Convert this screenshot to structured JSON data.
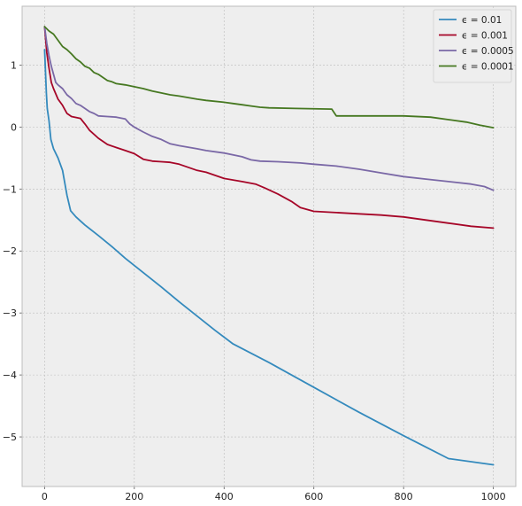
{
  "chart_data": {
    "type": "line",
    "title": "",
    "xlabel": "",
    "ylabel": "",
    "xlim": [
      -50,
      1050
    ],
    "ylim": [
      -5.8,
      1.95
    ],
    "grid": true,
    "legend_position": "top-right",
    "x_ticks": [
      0,
      200,
      400,
      600,
      800,
      1000
    ],
    "y_ticks": [
      -5,
      -4,
      -3,
      -2,
      -1,
      0,
      1
    ],
    "x_tick_labels": [
      "0",
      "200",
      "400",
      "600",
      "800",
      "1000"
    ],
    "y_tick_labels": [
      "−5",
      "−4",
      "−3",
      "−2",
      "−1",
      "0",
      "1"
    ],
    "colors": {
      "plot_background": "#eeeeee",
      "grid": "#bcbcbc",
      "frame": "#bcbcbc"
    },
    "series": [
      {
        "name": "ϵ = 0.01",
        "color": "#348abd",
        "points": [
          [
            0,
            1.25
          ],
          [
            2,
            0.9
          ],
          [
            4,
            0.55
          ],
          [
            6,
            0.3
          ],
          [
            10,
            0.1
          ],
          [
            14,
            -0.2
          ],
          [
            20,
            -0.35
          ],
          [
            30,
            -0.5
          ],
          [
            40,
            -0.7
          ],
          [
            50,
            -1.1
          ],
          [
            58,
            -1.35
          ],
          [
            70,
            -1.45
          ],
          [
            90,
            -1.58
          ],
          [
            120,
            -1.75
          ],
          [
            150,
            -1.93
          ],
          [
            180,
            -2.12
          ],
          [
            220,
            -2.35
          ],
          [
            260,
            -2.58
          ],
          [
            300,
            -2.82
          ],
          [
            340,
            -3.05
          ],
          [
            380,
            -3.28
          ],
          [
            420,
            -3.5
          ],
          [
            500,
            -3.8
          ],
          [
            600,
            -4.2
          ],
          [
            700,
            -4.6
          ],
          [
            800,
            -4.98
          ],
          [
            900,
            -5.35
          ],
          [
            1000,
            -5.45
          ]
        ]
      },
      {
        "name": "ϵ = 0.001",
        "color": "#a60628",
        "points": [
          [
            0,
            1.62
          ],
          [
            5,
            1.2
          ],
          [
            10,
            0.95
          ],
          [
            15,
            0.72
          ],
          [
            20,
            0.62
          ],
          [
            30,
            0.45
          ],
          [
            40,
            0.35
          ],
          [
            50,
            0.22
          ],
          [
            60,
            0.17
          ],
          [
            80,
            0.14
          ],
          [
            90,
            0.05
          ],
          [
            100,
            -0.05
          ],
          [
            120,
            -0.18
          ],
          [
            140,
            -0.28
          ],
          [
            160,
            -0.33
          ],
          [
            180,
            -0.38
          ],
          [
            200,
            -0.43
          ],
          [
            220,
            -0.52
          ],
          [
            240,
            -0.55
          ],
          [
            260,
            -0.56
          ],
          [
            280,
            -0.57
          ],
          [
            300,
            -0.6
          ],
          [
            320,
            -0.65
          ],
          [
            340,
            -0.7
          ],
          [
            360,
            -0.73
          ],
          [
            380,
            -0.78
          ],
          [
            400,
            -0.83
          ],
          [
            440,
            -0.88
          ],
          [
            470,
            -0.92
          ],
          [
            490,
            -0.98
          ],
          [
            520,
            -1.08
          ],
          [
            550,
            -1.2
          ],
          [
            570,
            -1.3
          ],
          [
            600,
            -1.36
          ],
          [
            650,
            -1.38
          ],
          [
            700,
            -1.4
          ],
          [
            750,
            -1.42
          ],
          [
            800,
            -1.45
          ],
          [
            850,
            -1.5
          ],
          [
            900,
            -1.55
          ],
          [
            950,
            -1.6
          ],
          [
            1000,
            -1.63
          ]
        ]
      },
      {
        "name": "ϵ = 0.0005",
        "color": "#7a68a6",
        "points": [
          [
            0,
            1.62
          ],
          [
            5,
            1.35
          ],
          [
            10,
            1.15
          ],
          [
            15,
            0.98
          ],
          [
            20,
            0.85
          ],
          [
            25,
            0.72
          ],
          [
            30,
            0.68
          ],
          [
            40,
            0.62
          ],
          [
            50,
            0.52
          ],
          [
            60,
            0.46
          ],
          [
            70,
            0.38
          ],
          [
            80,
            0.35
          ],
          [
            90,
            0.3
          ],
          [
            100,
            0.25
          ],
          [
            110,
            0.22
          ],
          [
            120,
            0.18
          ],
          [
            140,
            0.17
          ],
          [
            160,
            0.16
          ],
          [
            180,
            0.13
          ],
          [
            190,
            0.05
          ],
          [
            200,
            0.0
          ],
          [
            220,
            -0.08
          ],
          [
            240,
            -0.15
          ],
          [
            260,
            -0.2
          ],
          [
            280,
            -0.27
          ],
          [
            300,
            -0.3
          ],
          [
            340,
            -0.35
          ],
          [
            360,
            -0.38
          ],
          [
            400,
            -0.42
          ],
          [
            440,
            -0.48
          ],
          [
            460,
            -0.53
          ],
          [
            480,
            -0.55
          ],
          [
            520,
            -0.56
          ],
          [
            570,
            -0.58
          ],
          [
            600,
            -0.6
          ],
          [
            650,
            -0.63
          ],
          [
            700,
            -0.68
          ],
          [
            750,
            -0.74
          ],
          [
            800,
            -0.8
          ],
          [
            850,
            -0.84
          ],
          [
            900,
            -0.88
          ],
          [
            950,
            -0.92
          ],
          [
            980,
            -0.96
          ],
          [
            1000,
            -1.02
          ]
        ]
      },
      {
        "name": "ϵ = 0.0001",
        "color": "#467821",
        "points": [
          [
            0,
            1.62
          ],
          [
            10,
            1.55
          ],
          [
            20,
            1.5
          ],
          [
            30,
            1.4
          ],
          [
            40,
            1.3
          ],
          [
            50,
            1.25
          ],
          [
            60,
            1.18
          ],
          [
            70,
            1.1
          ],
          [
            80,
            1.05
          ],
          [
            90,
            0.98
          ],
          [
            100,
            0.95
          ],
          [
            110,
            0.88
          ],
          [
            120,
            0.85
          ],
          [
            130,
            0.8
          ],
          [
            140,
            0.75
          ],
          [
            150,
            0.73
          ],
          [
            160,
            0.7
          ],
          [
            180,
            0.68
          ],
          [
            200,
            0.65
          ],
          [
            220,
            0.62
          ],
          [
            240,
            0.58
          ],
          [
            260,
            0.55
          ],
          [
            280,
            0.52
          ],
          [
            300,
            0.5
          ],
          [
            340,
            0.45
          ],
          [
            360,
            0.43
          ],
          [
            400,
            0.4
          ],
          [
            420,
            0.38
          ],
          [
            440,
            0.36
          ],
          [
            460,
            0.34
          ],
          [
            480,
            0.32
          ],
          [
            500,
            0.31
          ],
          [
            560,
            0.3
          ],
          [
            640,
            0.29
          ],
          [
            650,
            0.18
          ],
          [
            700,
            0.18
          ],
          [
            800,
            0.18
          ],
          [
            860,
            0.16
          ],
          [
            900,
            0.12
          ],
          [
            940,
            0.08
          ],
          [
            970,
            0.03
          ],
          [
            1000,
            -0.01
          ]
        ]
      }
    ]
  }
}
